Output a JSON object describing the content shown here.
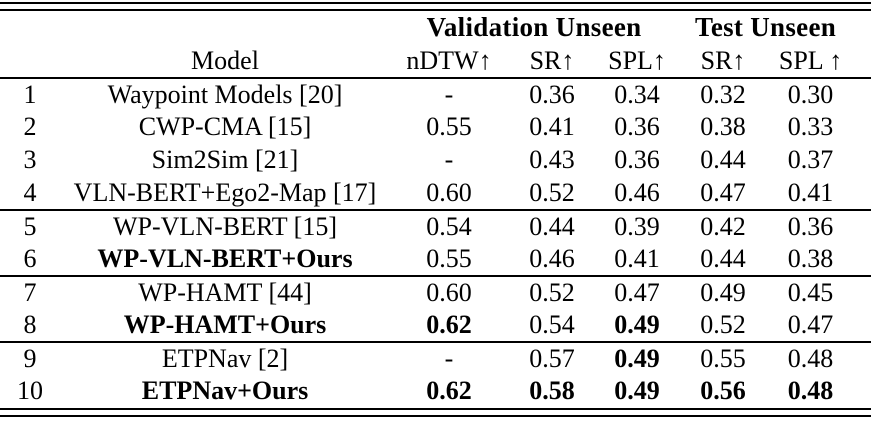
{
  "table": {
    "group_headers": [
      {
        "label": "Validation Unseen",
        "span": 3
      },
      {
        "label": "Test Unseen",
        "span": 2
      }
    ],
    "column_headers": {
      "index": "",
      "model": "Model",
      "cols": [
        "nDTW↑",
        "SR↑",
        "SPL↑",
        "SR↑",
        "SPL ↑"
      ]
    },
    "rows": [
      {
        "index": "1",
        "model": "Waypoint Models [20]",
        "model_bold": false,
        "values": [
          "-",
          "0.36",
          "0.34",
          "0.32",
          "0.30"
        ],
        "value_bold": [
          false,
          false,
          false,
          false,
          false
        ],
        "group": 0
      },
      {
        "index": "2",
        "model": "CWP-CMA [15]",
        "model_bold": false,
        "values": [
          "0.55",
          "0.41",
          "0.36",
          "0.38",
          "0.33"
        ],
        "value_bold": [
          false,
          false,
          false,
          false,
          false
        ],
        "group": 0
      },
      {
        "index": "3",
        "model": "Sim2Sim [21]",
        "model_bold": false,
        "values": [
          "-",
          "0.43",
          "0.36",
          "0.44",
          "0.37"
        ],
        "value_bold": [
          false,
          false,
          false,
          false,
          false
        ],
        "group": 0
      },
      {
        "index": "4",
        "model": "VLN-BERT+Ego2-Map [17]",
        "model_bold": false,
        "values": [
          "0.60",
          "0.52",
          "0.46",
          "0.47",
          "0.41"
        ],
        "value_bold": [
          false,
          false,
          false,
          false,
          false
        ],
        "group": 0
      },
      {
        "index": "5",
        "model": "WP-VLN-BERT [15]",
        "model_bold": false,
        "values": [
          "0.54",
          "0.44",
          "0.39",
          "0.42",
          "0.36"
        ],
        "value_bold": [
          false,
          false,
          false,
          false,
          false
        ],
        "group": 1
      },
      {
        "index": "6",
        "model": "WP-VLN-BERT+Ours",
        "model_bold": true,
        "values": [
          "0.55",
          "0.46",
          "0.41",
          "0.44",
          "0.38"
        ],
        "value_bold": [
          false,
          false,
          false,
          false,
          false
        ],
        "group": 1
      },
      {
        "index": "7",
        "model": "WP-HAMT [44]",
        "model_bold": false,
        "values": [
          "0.60",
          "0.52",
          "0.47",
          "0.49",
          "0.45"
        ],
        "value_bold": [
          false,
          false,
          false,
          false,
          false
        ],
        "group": 2
      },
      {
        "index": "8",
        "model": "WP-HAMT+Ours",
        "model_bold": true,
        "values": [
          "0.62",
          "0.54",
          "0.49",
          "0.52",
          "0.47"
        ],
        "value_bold": [
          true,
          false,
          true,
          false,
          false
        ],
        "group": 2
      },
      {
        "index": "9",
        "model": "ETPNav [2]",
        "model_bold": false,
        "values": [
          "-",
          "0.57",
          "0.49",
          "0.55",
          "0.48"
        ],
        "value_bold": [
          false,
          false,
          true,
          false,
          false
        ],
        "group": 3
      },
      {
        "index": "10",
        "model": "ETPNav+Ours",
        "model_bold": true,
        "values": [
          "0.62",
          "0.58",
          "0.49",
          "0.56",
          "0.48"
        ],
        "value_bold": [
          true,
          true,
          true,
          true,
          true
        ],
        "group": 3
      }
    ]
  }
}
